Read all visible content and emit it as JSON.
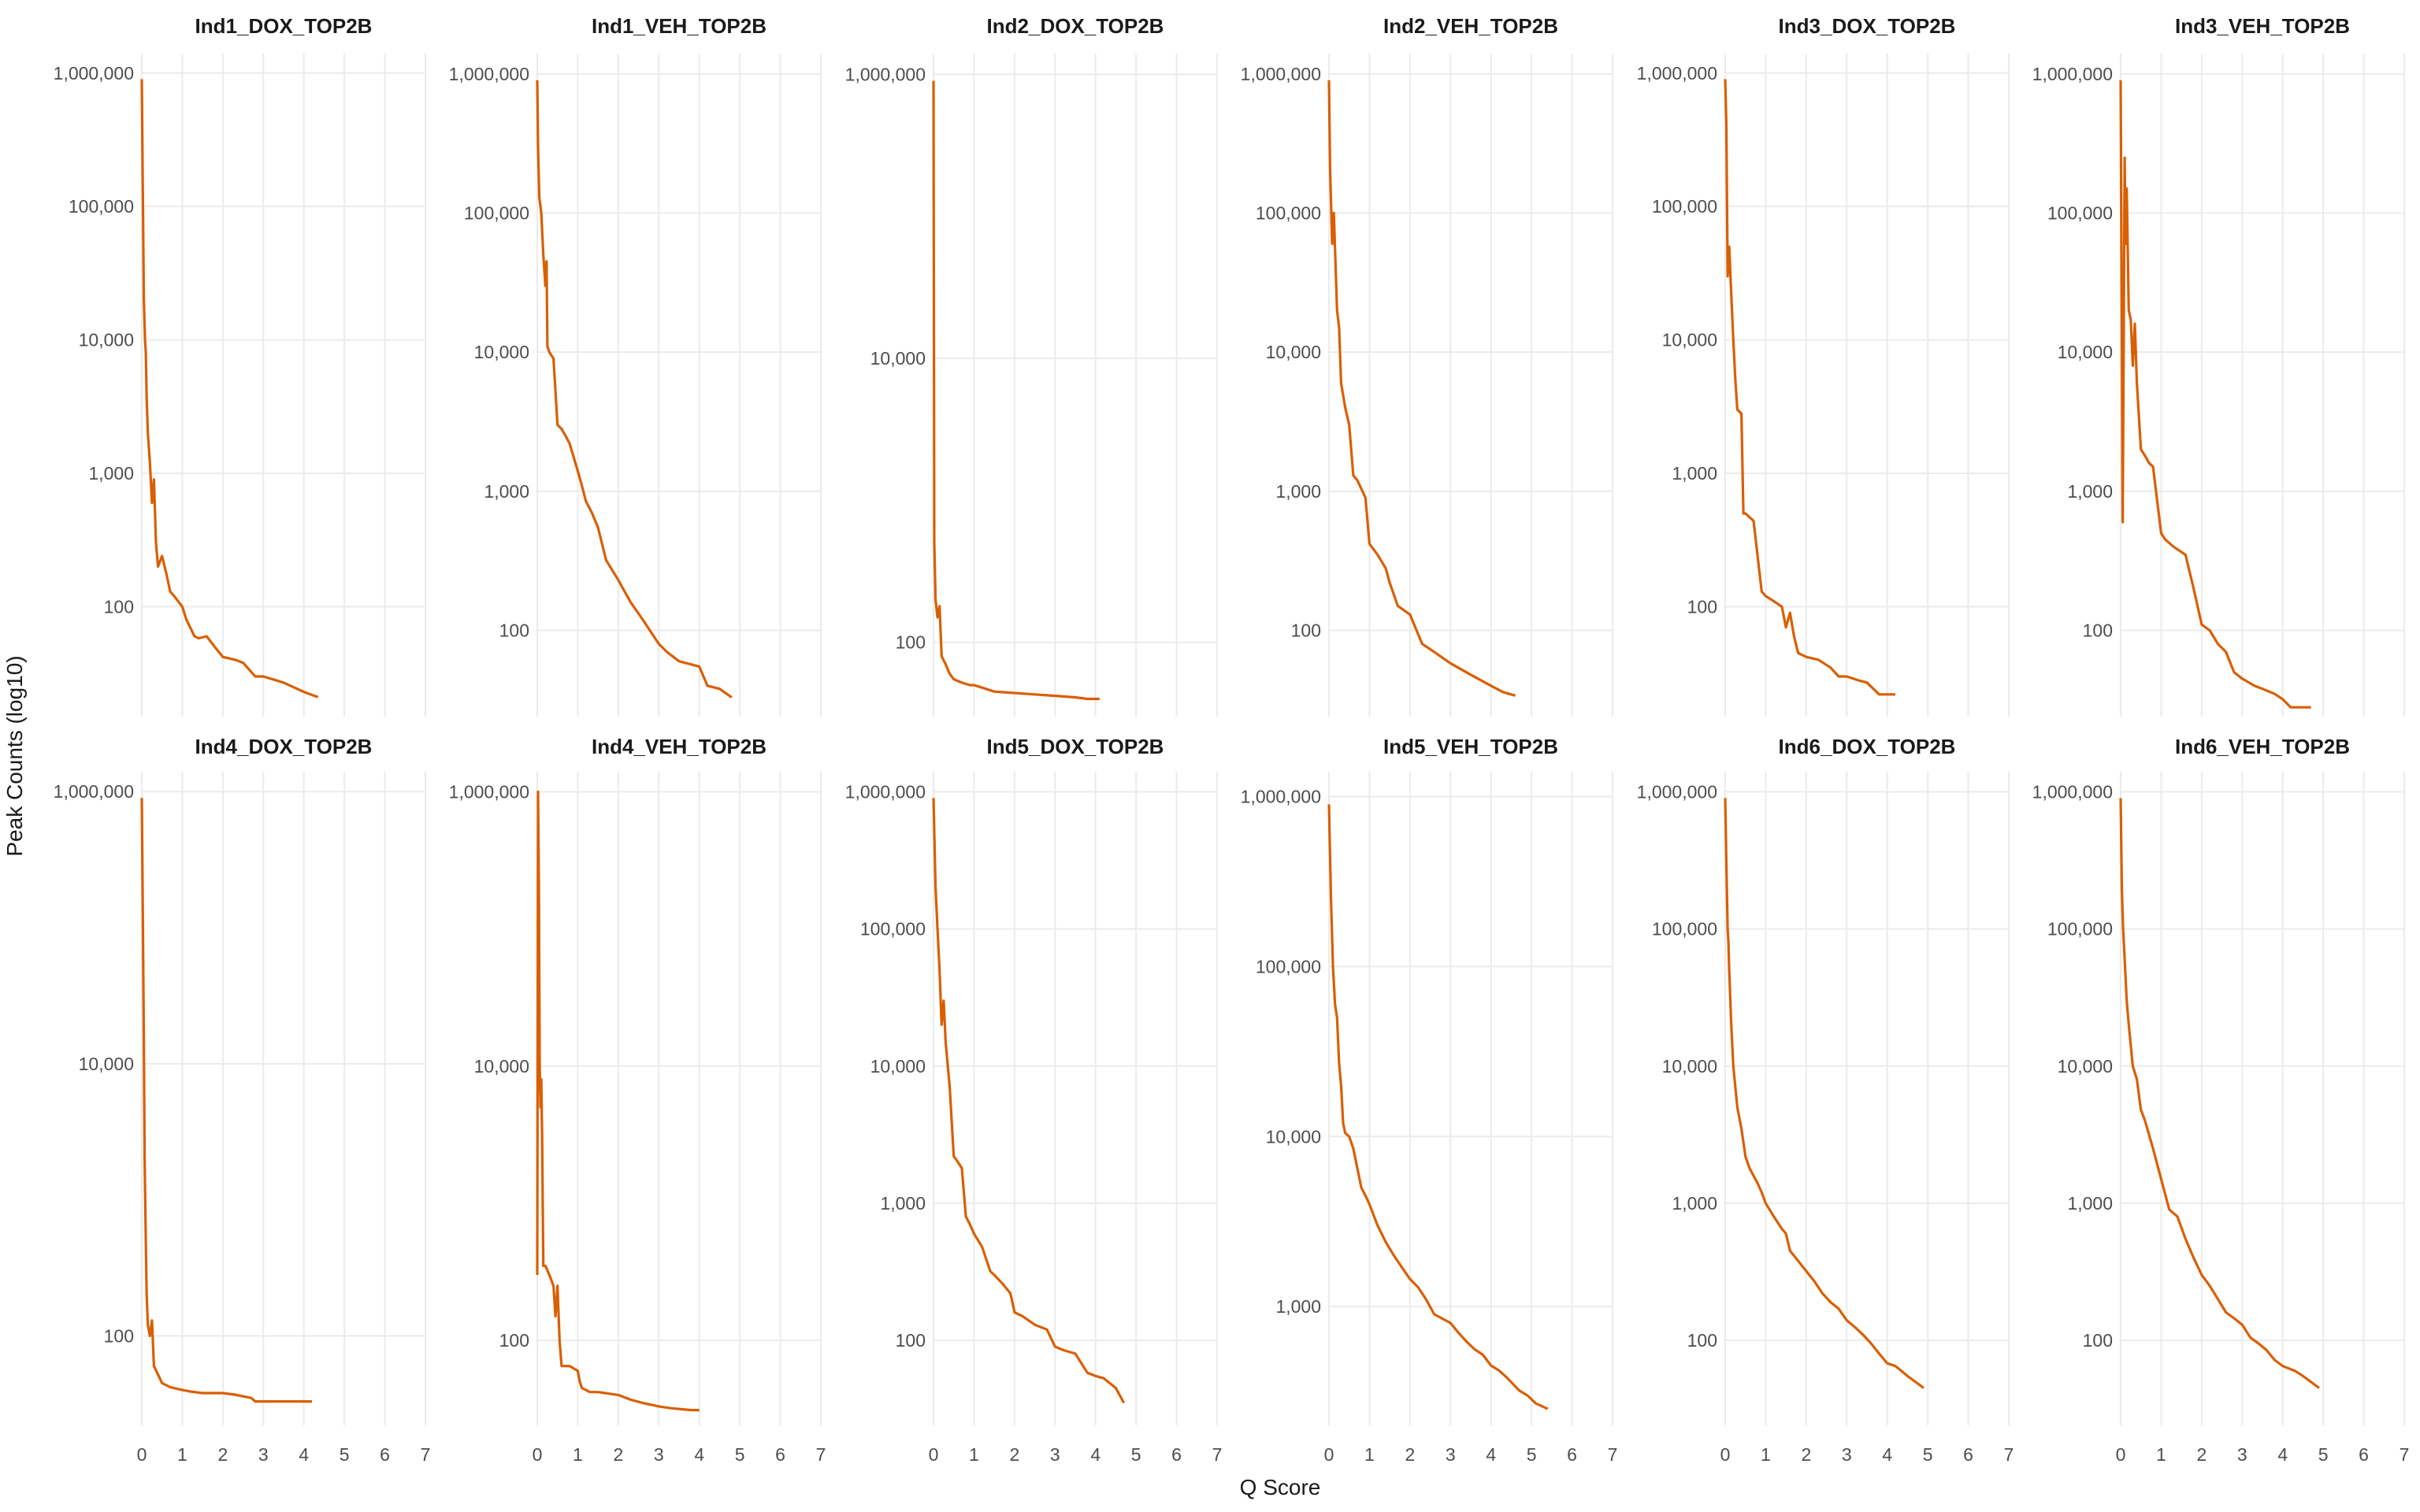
{
  "chart_data": {
    "type": "line",
    "ylabel": "Peak Counts (log10)",
    "xlabel": "Q Score",
    "yscale": "log10",
    "series_color": "#D95F02",
    "x_ticks": [
      0,
      1,
      2,
      3,
      4,
      5,
      6,
      7
    ],
    "x_tick_labels": [
      "0",
      "1",
      "2",
      "3",
      "4",
      "5",
      "6",
      "7"
    ],
    "xlim": [
      0,
      7
    ],
    "panels": [
      {
        "title": "Ind1_DOX_TOP2B",
        "ylim": [
          15,
          1400000
        ],
        "y_ticks": [
          100,
          1000,
          10000,
          100000,
          1000000
        ],
        "y_tick_labels": [
          "100",
          "1,000",
          "10,000",
          "100,000",
          "1,000,000"
        ],
        "x": [
          0,
          0.02,
          0.05,
          0.08,
          0.1,
          0.12,
          0.15,
          0.2,
          0.25,
          0.3,
          0.35,
          0.4,
          0.5,
          0.6,
          0.7,
          0.8,
          1.0,
          1.1,
          1.3,
          1.4,
          1.6,
          1.8,
          2.0,
          2.3,
          2.5,
          2.8,
          3.0,
          3.5,
          4.0,
          4.35
        ],
        "y": [
          900000,
          200000,
          20000,
          10000,
          8000,
          3600,
          2000,
          1200,
          600,
          900,
          300,
          200,
          240,
          180,
          130,
          120,
          100,
          80,
          60,
          58,
          60,
          50,
          42,
          40,
          38,
          30,
          30,
          27,
          23,
          21
        ]
      },
      {
        "title": "Ind1_VEH_TOP2B",
        "ylim": [
          24,
          1400000
        ],
        "y_ticks": [
          100,
          1000,
          10000,
          100000,
          1000000
        ],
        "y_tick_labels": [
          "100",
          "1,000",
          "10,000",
          "100,000",
          "1,000,000"
        ],
        "x": [
          0,
          0.02,
          0.05,
          0.1,
          0.15,
          0.2,
          0.23,
          0.25,
          0.3,
          0.4,
          0.5,
          0.6,
          0.7,
          0.8,
          1.0,
          1.1,
          1.2,
          1.35,
          1.5,
          1.7,
          2.0,
          2.3,
          2.6,
          3.0,
          3.2,
          3.5,
          4.0,
          4.2,
          4.5,
          4.8
        ],
        "y": [
          900000,
          300000,
          130000,
          100000,
          50000,
          30000,
          45000,
          11000,
          10000,
          9000,
          3000,
          2800,
          2500,
          2200,
          1400,
          1100,
          850,
          700,
          550,
          320,
          230,
          160,
          120,
          80,
          70,
          60,
          55,
          40,
          38,
          33
        ]
      },
      {
        "title": "Ind2_DOX_TOP2B",
        "ylim": [
          30,
          1400000
        ],
        "y_ticks": [
          100,
          10000,
          1000000
        ],
        "y_tick_labels": [
          "100",
          "10,000",
          "1,000,000"
        ],
        "x": [
          0,
          0.01,
          0.02,
          0.05,
          0.1,
          0.15,
          0.2,
          0.3,
          0.4,
          0.5,
          0.7,
          0.9,
          1.0,
          1.2,
          1.5,
          2.0,
          2.5,
          3.0,
          3.5,
          3.8,
          4.1
        ],
        "y": [
          900000,
          20000,
          500,
          200,
          150,
          180,
          80,
          70,
          60,
          55,
          52,
          50,
          50,
          48,
          45,
          44,
          43,
          42,
          41,
          40,
          40
        ]
      },
      {
        "title": "Ind2_VEH_TOP2B",
        "ylim": [
          24,
          1400000
        ],
        "y_ticks": [
          100,
          1000,
          10000,
          100000,
          1000000
        ],
        "y_tick_labels": [
          "100",
          "1,000",
          "10,000",
          "100,000",
          "1,000,000"
        ],
        "x": [
          0,
          0.03,
          0.08,
          0.12,
          0.2,
          0.25,
          0.3,
          0.4,
          0.5,
          0.6,
          0.7,
          0.9,
          1.0,
          1.2,
          1.4,
          1.5,
          1.7,
          2.0,
          2.3,
          2.6,
          3.0,
          3.5,
          4.0,
          4.3,
          4.6
        ],
        "y": [
          900000,
          200000,
          60000,
          100000,
          20000,
          15000,
          6000,
          4000,
          3000,
          1300,
          1200,
          900,
          420,
          350,
          280,
          220,
          150,
          130,
          80,
          70,
          58,
          48,
          40,
          36,
          34
        ]
      },
      {
        "title": "Ind3_DOX_TOP2B",
        "ylim": [
          15,
          1400000
        ],
        "y_ticks": [
          100,
          1000,
          10000,
          100000,
          1000000
        ],
        "y_tick_labels": [
          "100",
          "1,000",
          "10,000",
          "100,000",
          "1,000,000"
        ],
        "x": [
          0,
          0.03,
          0.06,
          0.1,
          0.15,
          0.2,
          0.25,
          0.3,
          0.4,
          0.45,
          0.5,
          0.7,
          0.9,
          1.0,
          1.2,
          1.4,
          1.5,
          1.6,
          1.7,
          1.8,
          2.0,
          2.3,
          2.6,
          2.8,
          3.0,
          3.3,
          3.5,
          3.8,
          4.2
        ],
        "y": [
          900000,
          400000,
          30000,
          50000,
          22000,
          10000,
          5000,
          3000,
          2800,
          500,
          500,
          440,
          130,
          120,
          110,
          100,
          70,
          90,
          60,
          45,
          42,
          40,
          35,
          30,
          30,
          28,
          27,
          22,
          22
        ]
      },
      {
        "title": "Ind3_VEH_TOP2B",
        "ylim": [
          24,
          1400000
        ],
        "y_ticks": [
          100,
          1000,
          10000,
          100000,
          1000000
        ],
        "y_tick_labels": [
          "100",
          "1,000",
          "10,000",
          "100,000",
          "1,000,000"
        ],
        "x": [
          0,
          0.05,
          0.1,
          0.12,
          0.15,
          0.2,
          0.25,
          0.3,
          0.35,
          0.4,
          0.5,
          0.6,
          0.7,
          0.8,
          1.0,
          1.1,
          1.3,
          1.6,
          1.8,
          2.0,
          2.2,
          2.4,
          2.6,
          2.8,
          3.0,
          3.3,
          3.5,
          3.8,
          4.0,
          4.2,
          4.5,
          4.7
        ],
        "y": [
          900000,
          600,
          250000,
          60000,
          150000,
          20000,
          17000,
          8000,
          16000,
          6000,
          2000,
          1800,
          1600,
          1500,
          500,
          450,
          400,
          350,
          200,
          110,
          100,
          80,
          70,
          50,
          45,
          40,
          38,
          35,
          32,
          28,
          28,
          28
        ]
      },
      {
        "title": "Ind4_DOX_TOP2B",
        "ylim": [
          22,
          1400000
        ],
        "y_ticks": [
          100,
          10000,
          1000000
        ],
        "y_tick_labels": [
          "100",
          "10,000",
          "1,000,000"
        ],
        "x": [
          0,
          0.02,
          0.05,
          0.07,
          0.1,
          0.12,
          0.15,
          0.2,
          0.25,
          0.3,
          0.4,
          0.5,
          0.7,
          1.0,
          1.2,
          1.5,
          2.0,
          2.3,
          2.7,
          2.8,
          3.0,
          3.5,
          4.0,
          4.2
        ],
        "y": [
          900000,
          200000,
          15000,
          2000,
          500,
          200,
          120,
          100,
          130,
          60,
          52,
          45,
          42,
          40,
          39,
          38,
          38,
          37,
          35,
          33,
          33,
          33,
          33,
          33
        ]
      },
      {
        "title": "Ind4_VEH_TOP2B",
        "ylim": [
          24,
          1400000
        ],
        "y_ticks": [
          100,
          10000,
          1000000
        ],
        "y_tick_labels": [
          "100",
          "10,000",
          "1,000,000"
        ],
        "x": [
          0,
          0.02,
          0.04,
          0.06,
          0.08,
          0.1,
          0.12,
          0.15,
          0.2,
          0.3,
          0.4,
          0.45,
          0.5,
          0.55,
          0.6,
          0.8,
          1.0,
          1.05,
          1.1,
          1.3,
          1.5,
          2.0,
          2.3,
          2.6,
          3.0,
          3.3,
          3.8,
          4.0
        ],
        "y": [
          300,
          1000000,
          200000,
          10000,
          5000,
          8000,
          3000,
          350,
          350,
          300,
          250,
          150,
          250,
          100,
          65,
          65,
          60,
          50,
          45,
          42,
          42,
          40,
          37,
          35,
          33,
          32,
          31,
          31
        ]
      },
      {
        "title": "Ind5_DOX_TOP2B",
        "ylim": [
          24,
          1400000
        ],
        "y_ticks": [
          100,
          1000,
          10000,
          100000,
          1000000
        ],
        "y_tick_labels": [
          "100",
          "1,000",
          "10,000",
          "100,000",
          "1,000,000"
        ],
        "x": [
          0,
          0.05,
          0.1,
          0.15,
          0.2,
          0.25,
          0.3,
          0.4,
          0.5,
          0.6,
          0.7,
          0.8,
          0.9,
          1.0,
          1.2,
          1.4,
          1.5,
          1.7,
          1.9,
          2.0,
          2.2,
          2.5,
          2.8,
          3.0,
          3.2,
          3.5,
          3.8,
          4.0,
          4.2,
          4.5,
          4.7
        ],
        "y": [
          900000,
          200000,
          100000,
          50000,
          20000,
          30000,
          15000,
          7000,
          2200,
          2000,
          1800,
          800,
          700,
          600,
          480,
          320,
          300,
          260,
          220,
          160,
          150,
          130,
          120,
          90,
          85,
          80,
          58,
          55,
          53,
          45,
          35
        ]
      },
      {
        "title": "Ind5_VEH_TOP2B",
        "ylim": [
          200,
          1400000
        ],
        "y_ticks": [
          1000,
          10000,
          100000,
          1000000
        ],
        "y_tick_labels": [
          "1,000",
          "10,000",
          "100,000",
          "1,000,000"
        ],
        "x": [
          0,
          0.05,
          0.1,
          0.15,
          0.2,
          0.25,
          0.3,
          0.35,
          0.4,
          0.5,
          0.6,
          0.8,
          0.9,
          1.0,
          1.2,
          1.4,
          1.6,
          1.8,
          2.0,
          2.2,
          2.4,
          2.6,
          2.8,
          3.0,
          3.2,
          3.4,
          3.6,
          3.8,
          4.0,
          4.2,
          4.4,
          4.7,
          4.9,
          5.1,
          5.4
        ],
        "y": [
          900000,
          250000,
          100000,
          60000,
          50000,
          27000,
          20000,
          12000,
          10500,
          10000,
          8500,
          5000,
          4500,
          4000,
          3000,
          2400,
          2000,
          1700,
          1450,
          1300,
          1100,
          900,
          850,
          800,
          700,
          620,
          560,
          520,
          450,
          420,
          380,
          320,
          300,
          270,
          250
        ]
      },
      {
        "title": "Ind6_DOX_TOP2B",
        "ylim": [
          24,
          1400000
        ],
        "y_ticks": [
          100,
          1000,
          10000,
          100000,
          1000000
        ],
        "y_tick_labels": [
          "100",
          "1,000",
          "10,000",
          "100,000",
          "1,000,000"
        ],
        "x": [
          0,
          0.03,
          0.06,
          0.08,
          0.1,
          0.15,
          0.2,
          0.3,
          0.4,
          0.5,
          0.6,
          0.8,
          0.9,
          1.0,
          1.2,
          1.4,
          1.5,
          1.6,
          1.8,
          2.0,
          2.2,
          2.4,
          2.6,
          2.8,
          3.0,
          3.2,
          3.4,
          3.6,
          3.8,
          4.0,
          4.2,
          4.5,
          4.9
        ],
        "y": [
          900000,
          300000,
          100000,
          80000,
          50000,
          20000,
          10000,
          5000,
          3500,
          2200,
          1800,
          1400,
          1200,
          1000,
          800,
          650,
          600,
          450,
          380,
          320,
          270,
          220,
          190,
          170,
          140,
          125,
          110,
          95,
          80,
          68,
          65,
          55,
          45
        ]
      },
      {
        "title": "Ind6_VEH_TOP2B",
        "ylim": [
          24,
          1400000
        ],
        "y_ticks": [
          100,
          1000,
          10000,
          100000,
          1000000
        ],
        "y_tick_labels": [
          "100",
          "1,000",
          "10,000",
          "100,000",
          "1,000,000"
        ],
        "x": [
          0,
          0.03,
          0.06,
          0.1,
          0.15,
          0.2,
          0.3,
          0.4,
          0.5,
          0.6,
          0.8,
          1.0,
          1.2,
          1.4,
          1.6,
          1.8,
          2.0,
          2.2,
          2.4,
          2.6,
          2.8,
          3.0,
          3.2,
          3.4,
          3.6,
          3.8,
          4.0,
          4.3,
          4.5,
          4.9
        ],
        "y": [
          900000,
          200000,
          100000,
          60000,
          30000,
          20000,
          10000,
          8000,
          4800,
          4000,
          2500,
          1500,
          900,
          800,
          550,
          400,
          300,
          250,
          200,
          160,
          145,
          130,
          105,
          95,
          85,
          72,
          65,
          60,
          55,
          45
        ]
      }
    ]
  }
}
